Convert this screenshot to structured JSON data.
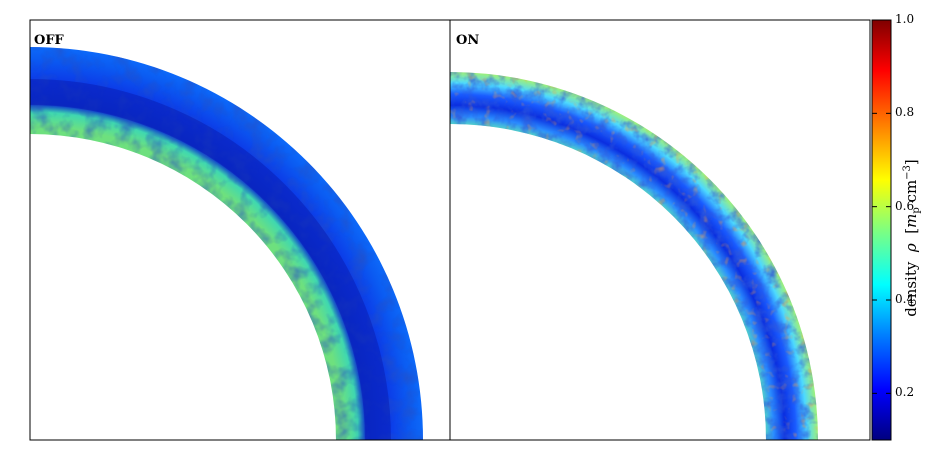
{
  "panels": [
    {
      "label": "OFF"
    },
    {
      "label": "ON"
    }
  ],
  "colorbar": {
    "ticks": [
      "0.2",
      "0.4",
      "0.6",
      "0.8",
      "1.0"
    ],
    "tick_values": [
      0.2,
      0.4,
      0.6,
      0.8,
      1.0
    ],
    "range": [
      0.1,
      1.0
    ],
    "label_word": "density",
    "label_symbol": "ρ",
    "label_unit_open": "[",
    "label_unit_m": "m",
    "label_unit_sub": "p",
    "label_unit_cm": " cm",
    "label_unit_sup": "−3",
    "label_unit_close": "]",
    "colormap": "jet"
  },
  "colors": {
    "jet": [
      "#00007f",
      "#0000ff",
      "#007fff",
      "#00ffff",
      "#7fff7f",
      "#ffff00",
      "#ff7f00",
      "#ff0000",
      "#7f0000"
    ]
  }
}
